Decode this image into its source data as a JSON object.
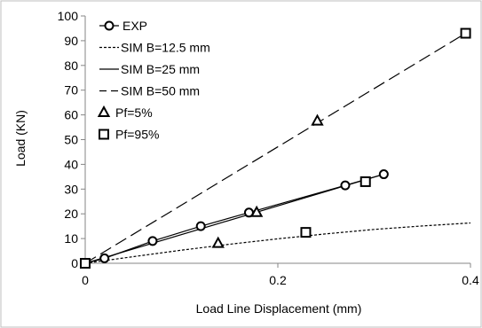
{
  "chart_data": {
    "type": "scatter",
    "xlabel": "Load Line Displacement (mm)",
    "ylabel": "Load (KN)",
    "xlim": [
      0,
      0.4
    ],
    "ylim": [
      0,
      100
    ],
    "xticks": [
      "0",
      "0.2",
      "0.4"
    ],
    "yticks": [
      "0",
      "10",
      "20",
      "30",
      "40",
      "50",
      "60",
      "70",
      "80",
      "90",
      "100"
    ],
    "grid": false,
    "legend_position": "top-left",
    "series": [
      {
        "name": "EXP",
        "kind": "line-markers",
        "marker": "circle",
        "line": "solid",
        "x": [
          0,
          0.02,
          0.07,
          0.12,
          0.17,
          0.27,
          0.31
        ],
        "y": [
          0,
          2,
          9,
          15,
          20.5,
          31.5,
          36
        ]
      },
      {
        "name": "SIM B=12.5 mm",
        "kind": "line",
        "line": "dotted",
        "x": [
          0,
          0.05,
          0.1,
          0.15,
          0.2,
          0.25,
          0.3,
          0.35,
          0.4
        ],
        "y": [
          0,
          2.7,
          5.3,
          7.7,
          9.9,
          11.9,
          13.7,
          15.1,
          16.3
        ]
      },
      {
        "name": "SIM B=25 mm",
        "kind": "line",
        "line": "solid",
        "x": [
          0,
          0.31
        ],
        "y": [
          0,
          36
        ]
      },
      {
        "name": "SIM B=50 mm",
        "kind": "line",
        "line": "dashed",
        "x": [
          0,
          0.395
        ],
        "y": [
          0,
          93
        ]
      },
      {
        "name": "Pf=5%",
        "kind": "markers",
        "marker": "triangle",
        "x": [
          0.138,
          0.178,
          0.241
        ],
        "y": [
          8,
          20.5,
          57.5
        ]
      },
      {
        "name": "Pf=95%",
        "kind": "markers",
        "marker": "square",
        "x": [
          0,
          0.229,
          0.291,
          0.395
        ],
        "y": [
          0,
          12.5,
          33,
          93
        ]
      }
    ]
  }
}
